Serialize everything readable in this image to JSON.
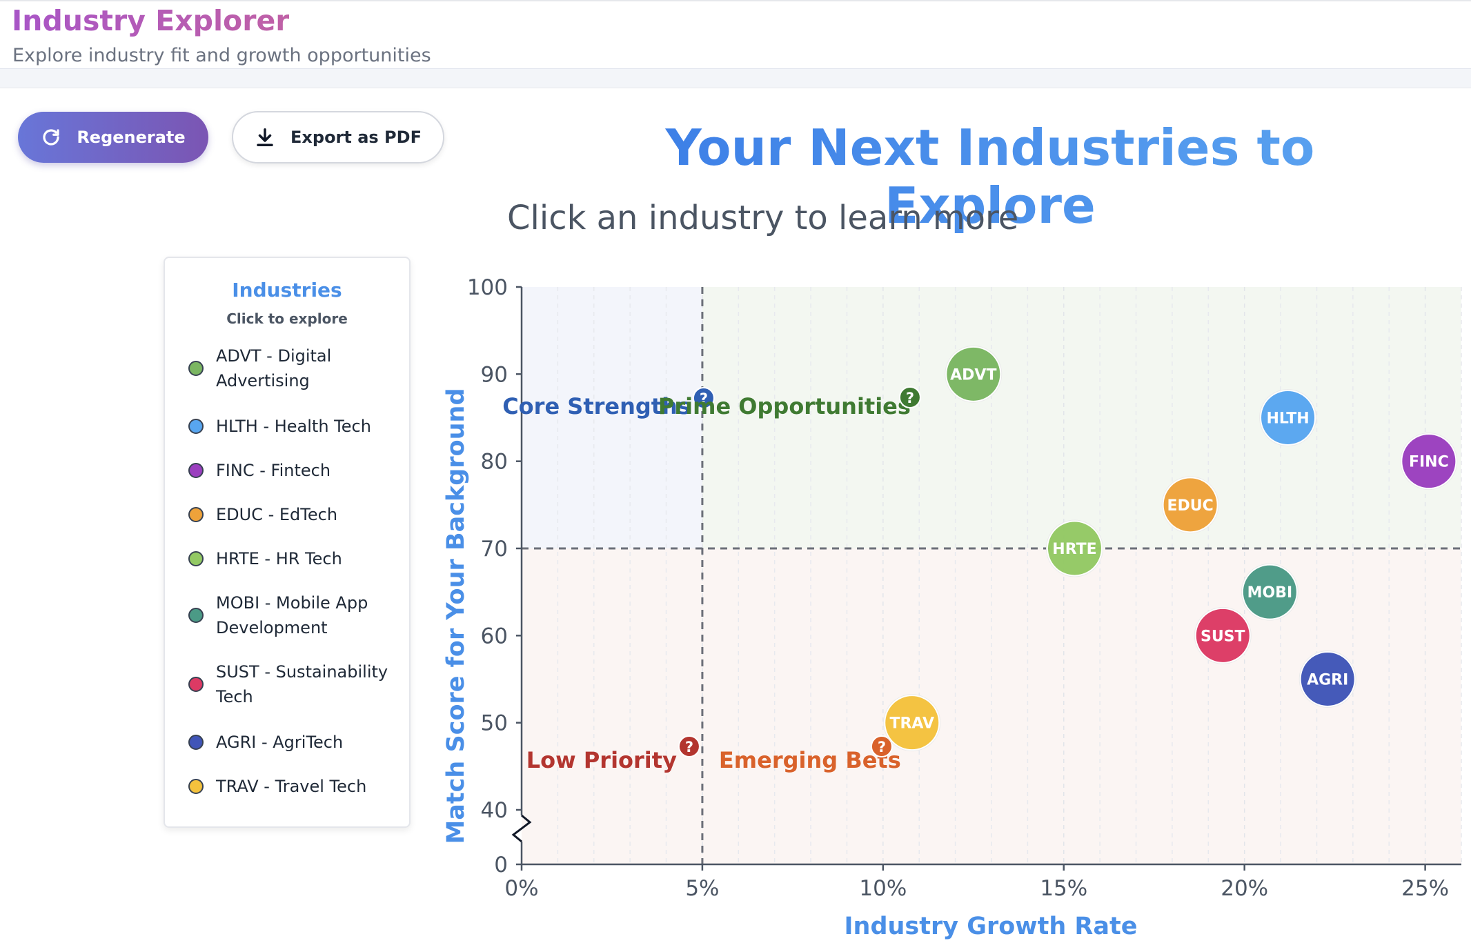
{
  "app": {
    "title": "Industry Explorer",
    "subtitle": "Explore industry fit and growth opportunities"
  },
  "toolbar": {
    "regenerate_label": "Regenerate",
    "export_label": "Export as PDF"
  },
  "chart_header": {
    "title": "Your Next Industries to Explore",
    "subtitle": "Click an industry to learn more"
  },
  "legend": {
    "title": "Industries",
    "subtitle": "Click to explore",
    "items": [
      {
        "label": "ADVT - Digital Advertising",
        "color": "#7bb662"
      },
      {
        "label": "HLTH - Health Tech",
        "color": "#58a6f0"
      },
      {
        "label": "FINC - Fintech",
        "color": "#9b3fbf"
      },
      {
        "label": "EDUC - EdTech",
        "color": "#eea23a"
      },
      {
        "label": "HRTE - HR Tech",
        "color": "#93c964"
      },
      {
        "label": "MOBI - Mobile App Development",
        "color": "#4b9a86"
      },
      {
        "label": "SUST - Sustainability Tech",
        "color": "#dd3a64"
      },
      {
        "label": "AGRI - AgriTech",
        "color": "#4055b8"
      },
      {
        "label": "TRAV - Travel Tech",
        "color": "#f4c23d"
      }
    ]
  },
  "chart_data": {
    "type": "scatter",
    "title": "Your Next Industries to Explore",
    "subtitle": "Click an industry to learn more",
    "xlabel": "Industry Growth Rate",
    "ylabel": "Match Score for Your Background",
    "xlim": [
      0,
      26
    ],
    "ylim": [
      40,
      100
    ],
    "y_axis_break": true,
    "x_ticks": [
      "0%",
      "5%",
      "10%",
      "15%",
      "20%",
      "25%"
    ],
    "x_tick_values": [
      0,
      5,
      10,
      15,
      20,
      25
    ],
    "y_ticks": [
      "0",
      "40",
      "50",
      "60",
      "70",
      "80",
      "90",
      "100"
    ],
    "y_tick_values": [
      0,
      40,
      50,
      60,
      70,
      80,
      90,
      100
    ],
    "threshold_x": 5,
    "threshold_y": 70,
    "quadrants": [
      {
        "label": "Core Strengths",
        "color": "#2f5fb3",
        "bg": "#f3f5fb"
      },
      {
        "label": "Prime Opportunities",
        "color": "#3f7a32",
        "bg": "#f3f7f1"
      },
      {
        "label": "Low Priority",
        "color": "#b3352f",
        "bg": "#fbf5f3"
      },
      {
        "label": "Emerging Bets",
        "color": "#d9622b",
        "bg": "#fbf5f3"
      }
    ],
    "points": [
      {
        "code": "ADVT",
        "x": 12.5,
        "y": 90,
        "color": "#7bb662"
      },
      {
        "code": "HLTH",
        "x": 21.2,
        "y": 85,
        "color": "#58a6f0"
      },
      {
        "code": "FINC",
        "x": 25.1,
        "y": 80,
        "color": "#9b3fbf"
      },
      {
        "code": "EDUC",
        "x": 18.5,
        "y": 75,
        "color": "#eea23a"
      },
      {
        "code": "HRTE",
        "x": 15.3,
        "y": 70,
        "color": "#93c964"
      },
      {
        "code": "MOBI",
        "x": 20.7,
        "y": 65,
        "color": "#4b9a86"
      },
      {
        "code": "SUST",
        "x": 19.4,
        "y": 60,
        "color": "#dd3a64"
      },
      {
        "code": "AGRI",
        "x": 22.3,
        "y": 55,
        "color": "#4055b8"
      },
      {
        "code": "TRAV",
        "x": 10.8,
        "y": 50,
        "color": "#f4c23d"
      }
    ]
  }
}
